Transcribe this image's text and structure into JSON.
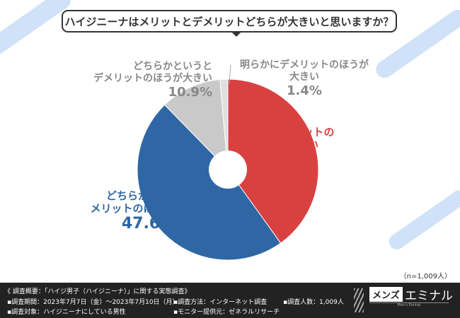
{
  "question": "ハイジニーナはメリットとデメリットどちらが大きいと思いますか？",
  "chart_data": {
    "type": "pie",
    "title": "ハイジニーナはメリットとデメリットどちらが大きいと思いますか？",
    "categories": [
      "明らかにメリットのほうが大きい",
      "どちらかというとメリットのほうが大きい",
      "どちらかというとデメリットのほうが大きい",
      "明らかにデメリットのほうが大きい"
    ],
    "values": [
      40.1,
      47.6,
      10.9,
      1.4
    ],
    "value_labels": [
      "40.1%",
      "47.6%",
      "10.9%",
      "1.4%"
    ],
    "colors": [
      "#d94141",
      "#2e67a3",
      "#c9c9c9",
      "#e0e0e0"
    ],
    "donut": true
  },
  "labels": {
    "a1": "明らかにメリットの",
    "a2": "ほうが大きい",
    "b1": "どちらかというと",
    "b2": "メリットのほうが大きい",
    "c1": "どちらかというと",
    "c2": "デメリットのほうが大きい",
    "d1": "明らかにデメリットのほうが大きい"
  },
  "sample": "（n=1,009人）",
  "footer": {
    "title": "《 調査概要：「ハイジ男子（ハイジニーナ）」に関する実態調査》",
    "period": "▪調査期間：2023年7月7日（金）～2023年7月10日（月）",
    "target": "▪調査対象：ハイジニーナにしている男性",
    "method": "▪調査方法：インターネット調査",
    "provider": "▪モニター提供元：ゼネラルリサーチ",
    "count": "▪調査人数：1,009人",
    "logo_box": "メンズ",
    "logo_text": "エミナル",
    "logo_sub": "Men's Eminal"
  }
}
